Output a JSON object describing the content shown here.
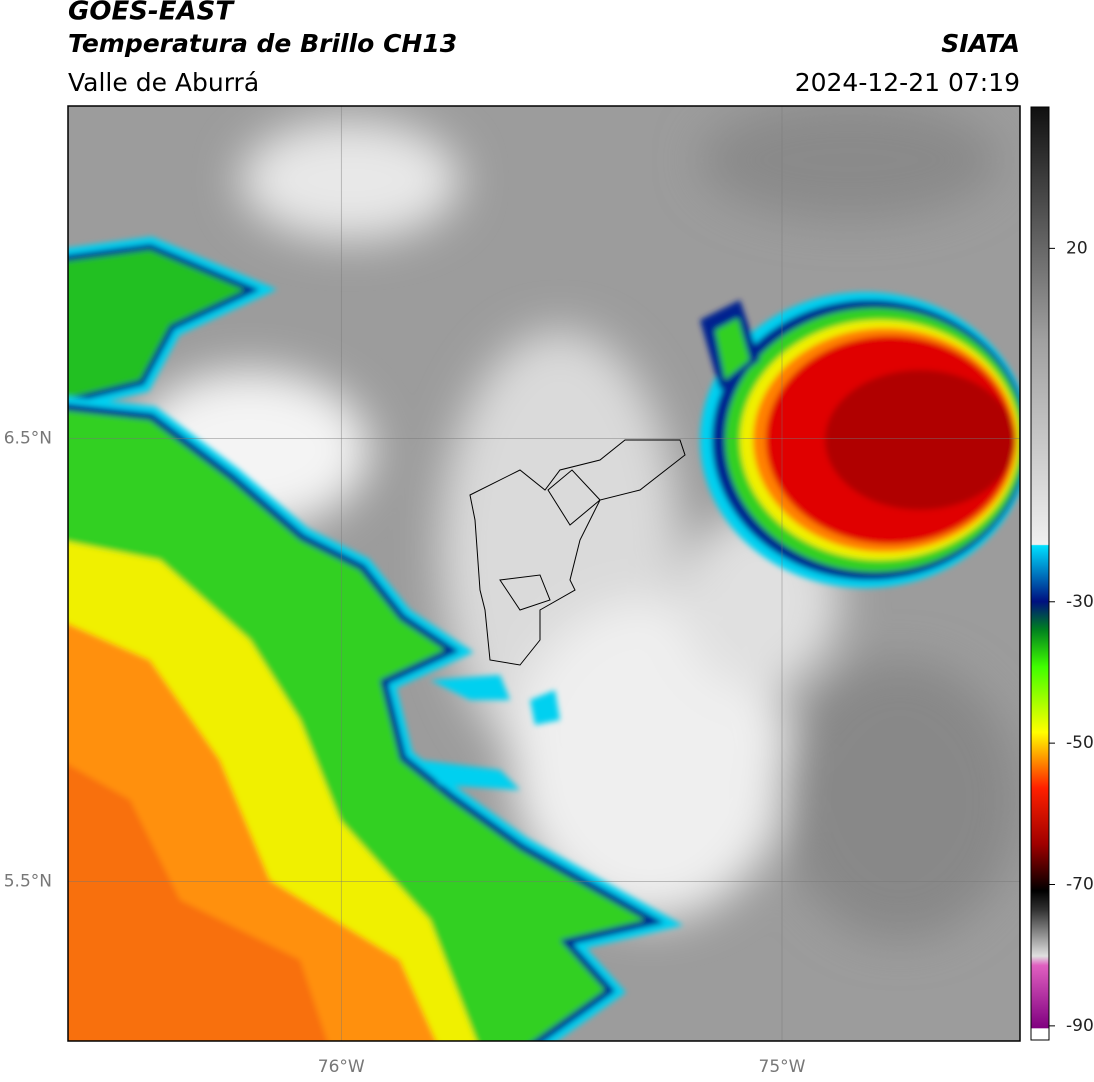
{
  "header": {
    "title": "GOES-EAST",
    "subtitle": "Temperatura de Brillo CH13",
    "region": "Valle de Aburrá",
    "source": "SIATA",
    "datetime": "2024-12-21 07:19"
  },
  "map": {
    "xlim": [
      -76.62,
      -74.46
    ],
    "ylim": [
      5.14,
      7.25
    ],
    "xticks": [
      {
        "value": -76,
        "label": "76°W"
      },
      {
        "value": -75,
        "label": "75°W"
      }
    ],
    "yticks": [
      {
        "value": 6.5,
        "label": "6.5°N"
      },
      {
        "value": 5.5,
        "label": "5.5°N"
      }
    ]
  },
  "colorbar": {
    "lim": [
      -92,
      40
    ],
    "ticks": [
      20,
      -30,
      -50,
      -70,
      -90
    ]
  }
}
